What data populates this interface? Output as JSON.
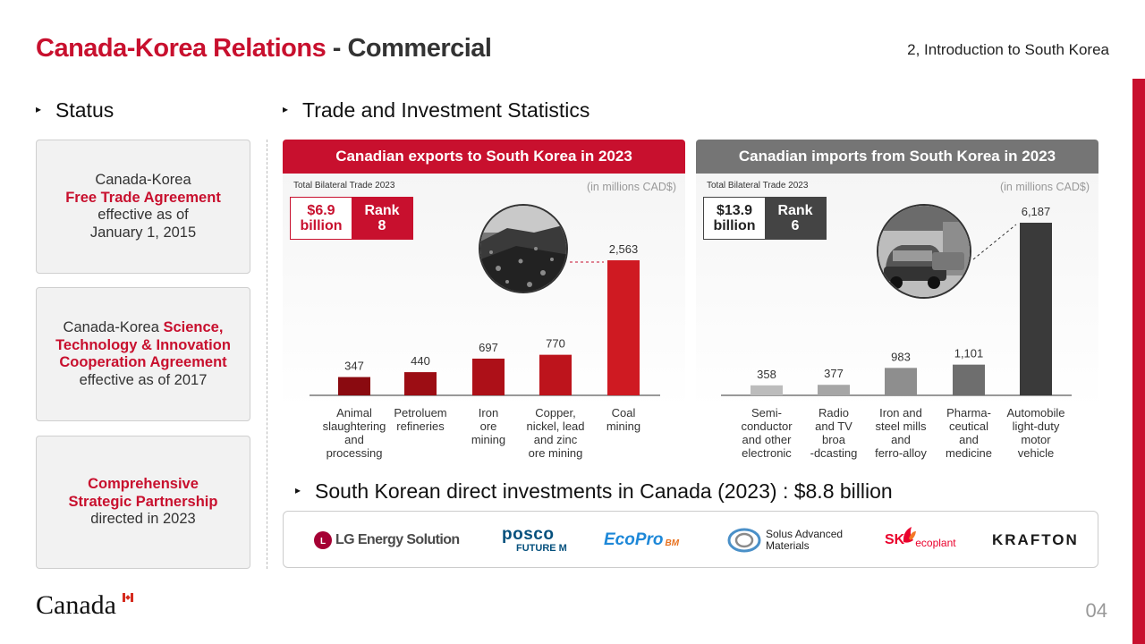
{
  "header": {
    "title_red": "Canada-Korea Relations",
    "title_dark": "- Commercial",
    "section_ref": "2, Introduction to South Korea"
  },
  "status": {
    "heading": "Status",
    "boxes": [
      {
        "pre": "Canada-Korea",
        "red": "Free Trade Agreement",
        "post1": "effective as of",
        "post2": "January 1, 2015"
      },
      {
        "pre": "Canada-Korea",
        "red1": "Science,",
        "red2": "Technology & Innovation",
        "red3": "Cooperation Agreement",
        "post": "effective as of 2017"
      },
      {
        "red1": "Comprehensive",
        "red2": "Strategic Partnership",
        "post": "directed in 2023"
      }
    ]
  },
  "trade": {
    "heading": "Trade and Investment Statistics",
    "exports": {
      "title": "Canadian exports to South Korea in 2023",
      "total_label": "Total Bilateral Trade 2023",
      "unit": "(in millions CAD$)",
      "total_line1": "$6.9",
      "total_line2": "billion",
      "rank_line1": "Rank",
      "rank_line2": "8",
      "photo_icon": "coal-pile-photo"
    },
    "imports": {
      "title": "Canadian imports from South Korea in 2023",
      "total_label": "Total Bilateral Trade 2023",
      "unit": "(in millions CAD$)",
      "total_line1": "$13.9",
      "total_line2": "billion",
      "rank_line1": "Rank",
      "rank_line2": "6",
      "photo_icon": "car-assembly-photo"
    }
  },
  "chart_data": [
    {
      "type": "bar",
      "title": "Canadian exports to South Korea in 2023",
      "categories": [
        "Animal slaughtering and processing",
        "Petroluem refineries",
        "Iron ore mining",
        "Copper, nickel, lead and zinc ore mining",
        "Coal mining"
      ],
      "category_lines": [
        [
          "Animal",
          "slaughtering",
          "and",
          "processing"
        ],
        [
          "Petroluem",
          "refineries"
        ],
        [
          "Iron",
          "ore",
          "mining"
        ],
        [
          "Copper,",
          "nickel, lead",
          "and zinc",
          "ore mining"
        ],
        [
          "Coal",
          "mining"
        ]
      ],
      "values": [
        347,
        440,
        697,
        770,
        2563
      ],
      "value_labels": [
        "347",
        "440",
        "697",
        "770",
        "2,563"
      ],
      "ylabel": "(in millions CAD$)",
      "colors": [
        "#8a0a10",
        "#9c0d14",
        "#ad1018",
        "#bd141c",
        "#cf1a22"
      ]
    },
    {
      "type": "bar",
      "title": "Canadian imports from South Korea in 2023",
      "categories": [
        "Semi-conductor and other electronic",
        "Radio and TV broa-dcasting",
        "Iron and steel mills and ferro-alloy",
        "Pharma-ceutical and medicine",
        "Automobile light-duty motor vehicle"
      ],
      "category_lines": [
        [
          "Semi-",
          "conductor",
          "and other",
          "electronic"
        ],
        [
          "Radio",
          "and TV",
          "broa",
          "-dcasting"
        ],
        [
          "Iron and",
          "steel mills",
          "and",
          "ferro-alloy"
        ],
        [
          "Pharma-",
          "ceutical",
          "and",
          "medicine"
        ],
        [
          "Automobile",
          "light-duty",
          "motor",
          "vehicle"
        ]
      ],
      "values": [
        358,
        377,
        983,
        1101,
        6187
      ],
      "value_labels": [
        "358",
        "377",
        "983",
        "1,101",
        "6,187"
      ],
      "ylabel": "(in millions CAD$)",
      "colors": [
        "#bcbcbc",
        "#a6a6a6",
        "#8e8e8e",
        "#6e6e6e",
        "#3a3a3a"
      ]
    }
  ],
  "investment": {
    "heading": "South Korean direct investments in Canada (2023) : $8.8 billion",
    "logos": {
      "lg": "LG Energy Solution",
      "posco1": "posco",
      "posco2": "FUTURE M",
      "ecopro": "EcoPro",
      "ecopro_bm": "BM",
      "solus1": "Solus Advanced",
      "solus2": "Materials",
      "sk": "SK",
      "sk_sub": "ecoplant",
      "krafton": "KRAFTON"
    }
  },
  "footer": {
    "wordmark": "Canada",
    "page": "04"
  },
  "colors": {
    "accent": "#c8102e",
    "gray_header": "#757575"
  }
}
